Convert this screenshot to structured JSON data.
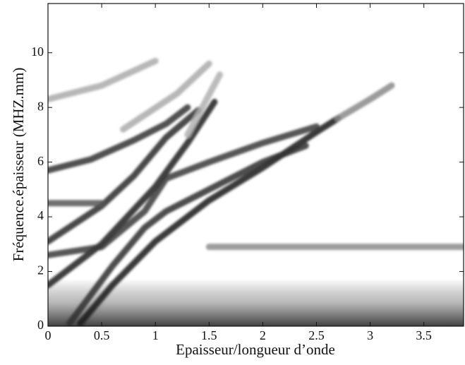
{
  "chart_data": {
    "type": "line",
    "x_label": "Epaisseur/longueur d’onde",
    "y_label": "Fréquence.épaisseur (MHZ.mm)",
    "xlim": [
      0,
      3.87
    ],
    "ylim": [
      0,
      11.8
    ],
    "xticks": [
      0,
      0.5,
      1,
      1.5,
      2,
      2.5,
      3,
      3.5
    ],
    "yticks": [
      0,
      2,
      4,
      6,
      8,
      10
    ],
    "series": [
      {
        "color": "#1a1a1a",
        "x": [
          0.3,
          0.6,
          1,
          1.5,
          2,
          2.5,
          2.7
        ],
        "values": [
          0.1,
          1.5,
          3.1,
          4.6,
          5.8,
          7.1,
          7.6
        ]
      },
      {
        "color": "#8a8a8a",
        "x": [
          2.7,
          3.0,
          3.2
        ],
        "values": [
          7.6,
          8.3,
          8.8
        ]
      },
      {
        "color": "#222222",
        "x": [
          0,
          0.5,
          1,
          1.3,
          1.55
        ],
        "values": [
          1.5,
          3.0,
          5.1,
          6.7,
          8.2
        ]
      },
      {
        "color": "#2a2a2a",
        "x": [
          0,
          0.5,
          0.8,
          1.1,
          1.4
        ],
        "values": [
          3.1,
          4.4,
          5.5,
          6.9,
          7.9
        ]
      },
      {
        "color": "#333333",
        "x": [
          0,
          0.4,
          0.8,
          1.1,
          1.3
        ],
        "values": [
          5.7,
          6.1,
          6.8,
          7.4,
          8.0
        ]
      },
      {
        "color": "#303030",
        "x": [
          0.2,
          0.6,
          0.9,
          1.1,
          1.5,
          2.0,
          2.4
        ],
        "values": [
          0.1,
          2.2,
          3.6,
          4.2,
          5.0,
          6.0,
          6.6
        ]
      },
      {
        "color": "#3a3a3a",
        "x": [
          0,
          0.5,
          0.9,
          1.1,
          1.5,
          2.0,
          2.5
        ],
        "values": [
          2.6,
          2.9,
          4.2,
          5.4,
          6.0,
          6.7,
          7.3
        ]
      },
      {
        "color": "#aaaaaa",
        "x": [
          0,
          0.5,
          1
        ],
        "values": [
          8.3,
          8.8,
          9.7
        ]
      },
      {
        "color": "#aaaaaa",
        "x": [
          0.7,
          1.2,
          1.5
        ],
        "values": [
          7.2,
          8.5,
          9.6
        ]
      },
      {
        "color": "#b0b0b0",
        "x": [
          1.3,
          1.6
        ],
        "values": [
          7.0,
          9.2
        ]
      },
      {
        "color": "#8c8c8c",
        "x": [
          1.5,
          2.5,
          3.87
        ],
        "values": [
          2.9,
          2.9,
          2.9
        ]
      },
      {
        "color": "#555555",
        "x": [
          0,
          0.5
        ],
        "values": [
          4.5,
          4.5
        ]
      }
    ]
  }
}
